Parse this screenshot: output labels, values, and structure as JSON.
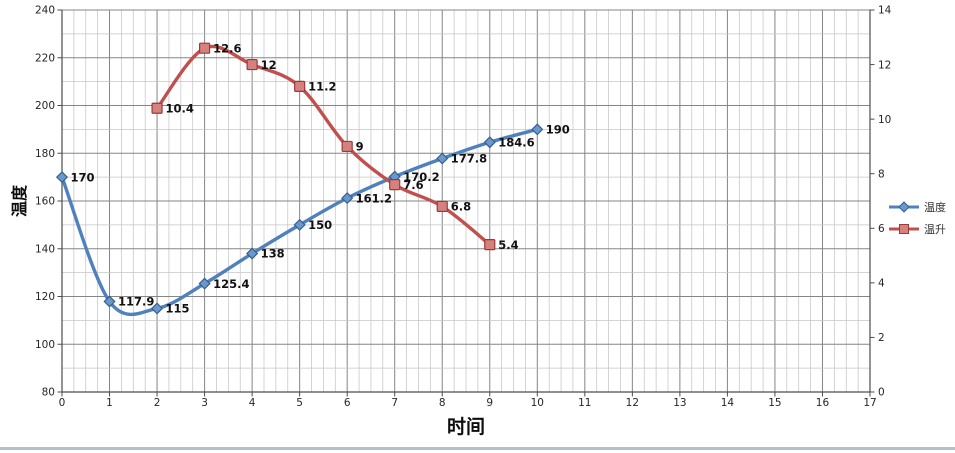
{
  "window": {
    "background_color": "#ffffff",
    "bottom_border_color": "#b4c1cb"
  },
  "chart_data": {
    "type": "line",
    "xlabel": "时间",
    "ylabel_left": "温度",
    "grid": true,
    "legend_position": "right",
    "x_axis": {
      "min": 0,
      "max": 17,
      "major_step": 1,
      "minor_step": 0.25,
      "tick_labels": [
        "0",
        "1",
        "2",
        "3",
        "4",
        "5",
        "6",
        "7",
        "8",
        "9",
        "10",
        "11",
        "12",
        "13",
        "14",
        "15",
        "16",
        "17"
      ]
    },
    "y_axis_left": {
      "min": 80,
      "max": 240,
      "major_step": 20,
      "minor_step": 10,
      "tick_labels": [
        "80",
        "100",
        "120",
        "140",
        "160",
        "180",
        "200",
        "220",
        "240"
      ]
    },
    "y_axis_right": {
      "min": 0,
      "max": 14,
      "major_step": 2,
      "minor_step": 1,
      "tick_labels": [
        "0",
        "2",
        "4",
        "6",
        "8",
        "10",
        "12",
        "14"
      ]
    },
    "series": [
      {
        "name": "温度",
        "axis": "left",
        "marker": "diamond",
        "color": "#4f81bd",
        "marker_fill": "#6b98cc",
        "marker_stroke": "#33608f",
        "x": [
          0,
          1,
          2,
          3,
          4,
          5,
          6,
          7,
          8,
          9,
          10
        ],
        "values": [
          170,
          117.9,
          115,
          125.4,
          138,
          150,
          161.2,
          170.2,
          177.8,
          184.6,
          190
        ],
        "labels": [
          "170",
          "117.9",
          "115",
          "125.4",
          "138",
          "150",
          "161.2",
          "170.2",
          "177.8",
          "184.6",
          "190"
        ]
      },
      {
        "name": "温升",
        "axis": "right",
        "marker": "square",
        "color": "#c0504d",
        "marker_fill": "#d5817e",
        "marker_stroke": "#9c3a38",
        "x": [
          2,
          3,
          4,
          5,
          6,
          7,
          8,
          9
        ],
        "values": [
          10.4,
          12.6,
          12,
          11.2,
          9,
          7.6,
          6.8,
          5.4
        ],
        "labels": [
          "10.4",
          "12.6",
          "12",
          "11.2",
          "9",
          "7.6",
          "6.8",
          "5.4"
        ]
      }
    ]
  }
}
